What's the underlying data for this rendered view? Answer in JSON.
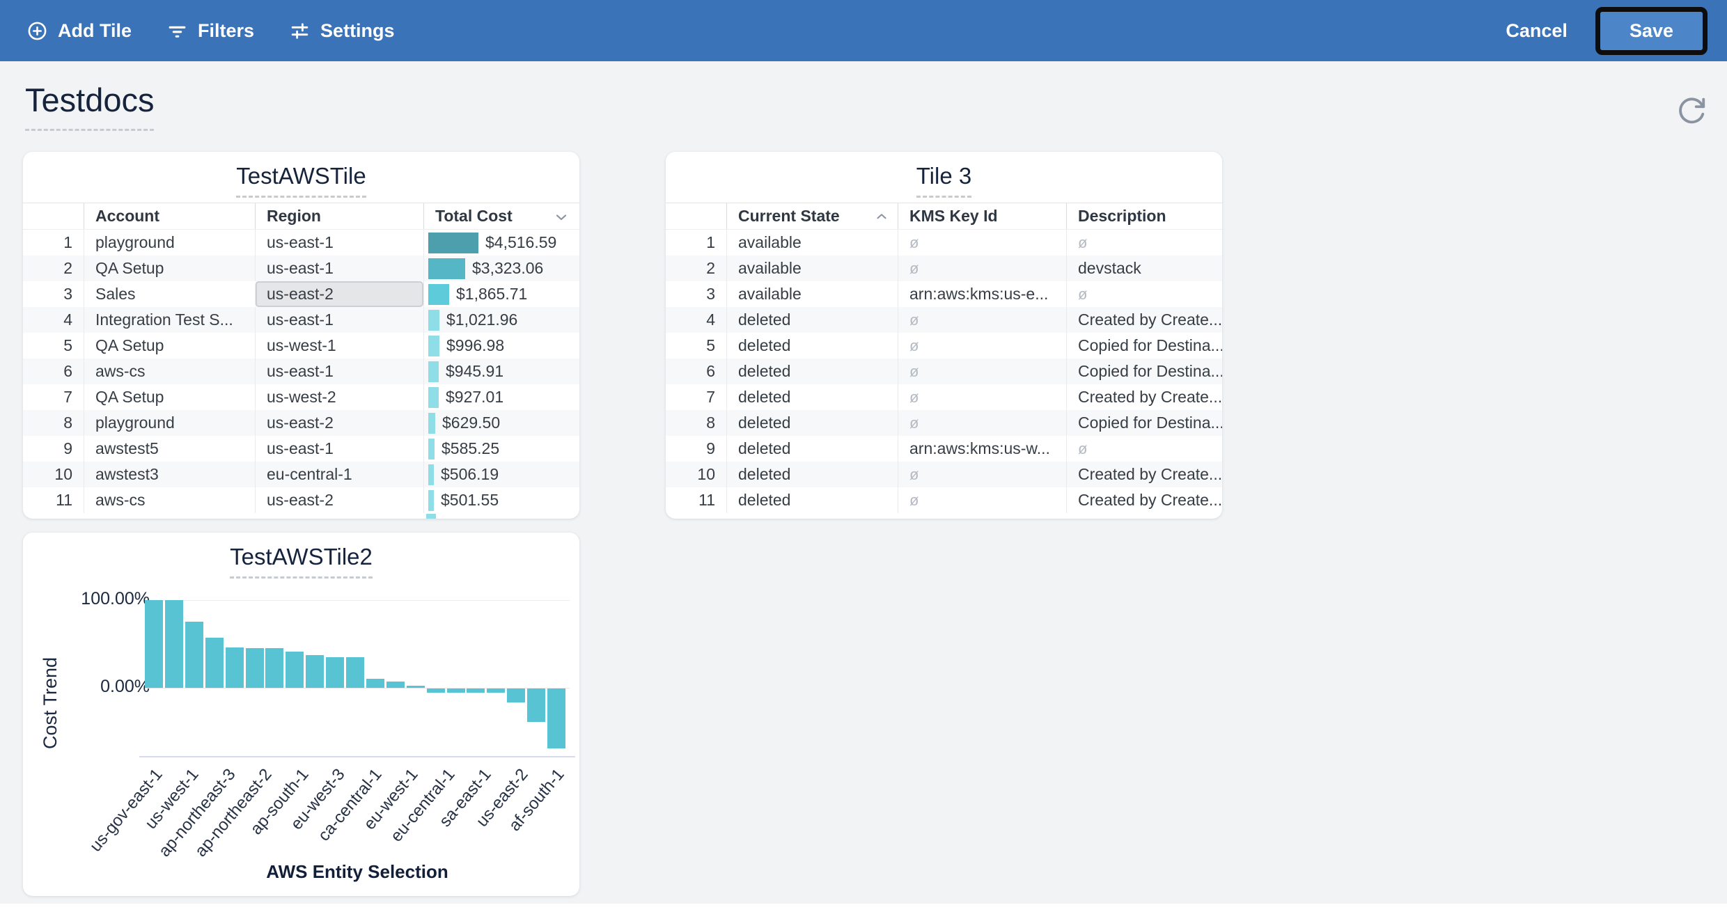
{
  "toolbar": {
    "add_tile": "Add Tile",
    "filters": "Filters",
    "settings": "Settings",
    "cancel": "Cancel",
    "save": "Save",
    "bg_color": "#3b73b8",
    "save_bg_color": "#4c86c9"
  },
  "page": {
    "title": "Testdocs"
  },
  "icons": {
    "add_tile": "plus-circle-icon",
    "filters": "filter-lines-icon",
    "settings": "sliders-icon",
    "refresh": "refresh-cw-icon",
    "sort_asc": "chevron-up-icon",
    "column_menu": "chevron-down-icon"
  },
  "tiles": {
    "tile1": {
      "title": "TestAWSTile",
      "columns": [
        "Account",
        "Region",
        "Total Cost"
      ],
      "selected_cell": {
        "row": 3,
        "column": "Region"
      },
      "rows": [
        {
          "n": 1,
          "account": "playground",
          "region": "us-east-1",
          "cost": "$4,516.59",
          "value": 4516.59,
          "bar_color": "#4d9fae",
          "selected": false
        },
        {
          "n": 2,
          "account": "QA Setup",
          "region": "us-east-1",
          "cost": "$3,323.06",
          "value": 3323.06,
          "bar_color": "#55b7c6",
          "selected": false
        },
        {
          "n": 3,
          "account": "Sales",
          "region": "us-east-2",
          "cost": "$1,865.71",
          "value": 1865.71,
          "bar_color": "#5ecbdb",
          "selected": true
        },
        {
          "n": 4,
          "account": "Integration Test S...",
          "region": "us-east-1",
          "cost": "$1,021.96",
          "value": 1021.96,
          "bar_color": "#8edde7",
          "selected": false
        },
        {
          "n": 5,
          "account": "QA Setup",
          "region": "us-west-1",
          "cost": "$996.98",
          "value": 996.98,
          "bar_color": "#8edde7",
          "selected": false
        },
        {
          "n": 6,
          "account": "aws-cs",
          "region": "us-east-1",
          "cost": "$945.91",
          "value": 945.91,
          "bar_color": "#8edde7",
          "selected": false
        },
        {
          "n": 7,
          "account": "QA Setup",
          "region": "us-west-2",
          "cost": "$927.01",
          "value": 927.01,
          "bar_color": "#8edde7",
          "selected": false
        },
        {
          "n": 8,
          "account": "playground",
          "region": "us-east-2",
          "cost": "$629.50",
          "value": 629.5,
          "bar_color": "#8edde7",
          "selected": false
        },
        {
          "n": 9,
          "account": "awstest5",
          "region": "us-east-1",
          "cost": "$585.25",
          "value": 585.25,
          "bar_color": "#8edde7",
          "selected": false
        },
        {
          "n": 10,
          "account": "awstest3",
          "region": "eu-central-1",
          "cost": "$506.19",
          "value": 506.19,
          "bar_color": "#8edde7",
          "selected": false
        },
        {
          "n": 11,
          "account": "aws-cs",
          "region": "us-east-2",
          "cost": "$501.55",
          "value": 501.55,
          "bar_color": "#8edde7",
          "selected": false
        }
      ]
    },
    "tile2": {
      "title": "Tile 3",
      "columns": [
        "Current State",
        "KMS Key Id",
        "Description"
      ],
      "sorted_column": "Current State",
      "sort_direction": "asc",
      "null_glyph": "ø",
      "rows": [
        {
          "n": 1,
          "state": "available",
          "kms": null,
          "desc": null
        },
        {
          "n": 2,
          "state": "available",
          "kms": null,
          "desc": "devstack"
        },
        {
          "n": 3,
          "state": "available",
          "kms": "arn:aws:kms:us-e...",
          "desc": null
        },
        {
          "n": 4,
          "state": "deleted",
          "kms": null,
          "desc": "Created by Create..."
        },
        {
          "n": 5,
          "state": "deleted",
          "kms": null,
          "desc": "Copied for Destina..."
        },
        {
          "n": 6,
          "state": "deleted",
          "kms": null,
          "desc": "Copied for Destina..."
        },
        {
          "n": 7,
          "state": "deleted",
          "kms": null,
          "desc": "Created by Create..."
        },
        {
          "n": 8,
          "state": "deleted",
          "kms": null,
          "desc": "Copied for Destina..."
        },
        {
          "n": 9,
          "state": "deleted",
          "kms": "arn:aws:kms:us-w...",
          "desc": null
        },
        {
          "n": 10,
          "state": "deleted",
          "kms": null,
          "desc": "Created by Create..."
        },
        {
          "n": 11,
          "state": "deleted",
          "kms": null,
          "desc": "Created by Create..."
        }
      ]
    }
  },
  "chart_data": {
    "type": "bar",
    "title": "TestAWSTile2",
    "xlabel": "AWS Entity Selection",
    "ylabel": "Cost Trend",
    "y_ticks": [
      "100.00%",
      "0.00%"
    ],
    "ylim": [
      -80,
      100
    ],
    "grid": true,
    "bar_color": "#58c4d3",
    "x_tick_labels": [
      "us-gov-east-1",
      "us-west-1",
      "ap-northeast-3",
      "ap-northeast-2",
      "ap-south-1",
      "eu-west-3",
      "ca-central-1",
      "eu-west-1",
      "eu-central-1",
      "sa-east-1",
      "us-east-2",
      "af-south-1"
    ],
    "values": [
      100,
      100,
      75,
      57,
      46,
      45,
      45,
      41,
      37,
      35,
      35,
      10,
      7,
      2,
      -5,
      -5,
      -5,
      -5,
      -16,
      -38,
      -68
    ]
  }
}
